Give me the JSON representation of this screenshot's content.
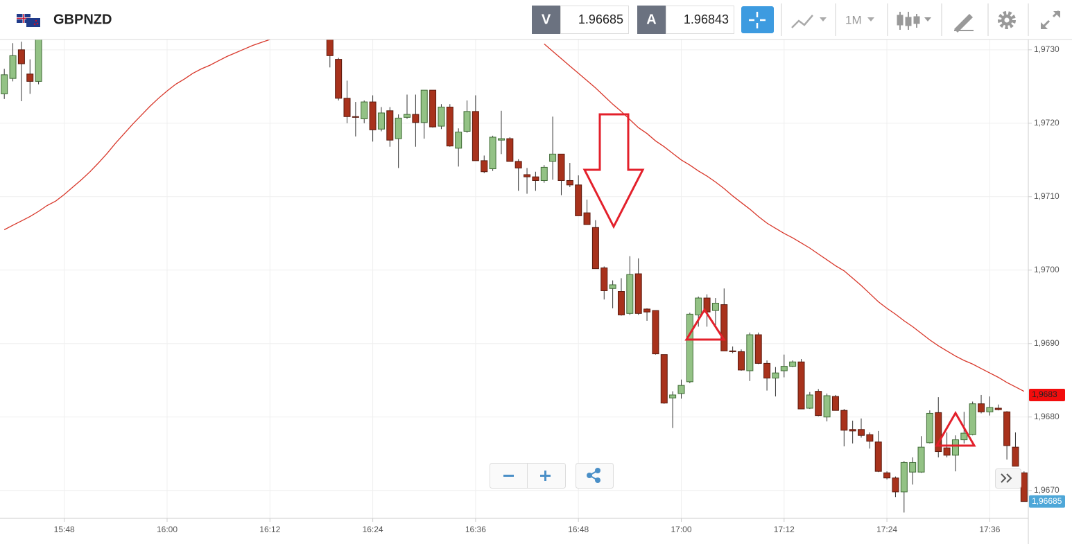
{
  "toolbar": {
    "symbol": "GBPNZD",
    "bid_label": "V",
    "bid": 1.96685,
    "ask_label": "A",
    "ask": 1.96843,
    "timeframe": "1M"
  },
  "chart_data": {
    "type": "candlestick",
    "categories": [
      null,
      null,
      null,
      null,
      null,
      null,
      null,
      "15:48",
      null,
      null,
      null,
      null,
      null,
      null,
      null,
      null,
      null,
      null,
      null,
      "16:00",
      null,
      null,
      null,
      null,
      null,
      null,
      null,
      null,
      null,
      null,
      null,
      "16:12",
      null,
      null,
      null,
      null,
      null,
      null,
      null,
      null,
      null,
      null,
      null,
      "16:24",
      null,
      null,
      null,
      null,
      null,
      null,
      null,
      null,
      null,
      null,
      null,
      "16:36",
      null,
      null,
      null,
      null,
      null,
      null,
      null,
      null,
      null,
      null,
      null,
      "16:48",
      null,
      null,
      null,
      null,
      null,
      null,
      null,
      null,
      null,
      null,
      null,
      "17:00",
      null,
      null,
      null,
      null,
      null,
      null,
      null,
      null,
      null,
      null,
      null,
      "17:12",
      null,
      null,
      null,
      null,
      null,
      null,
      null,
      null,
      null,
      null,
      null,
      "17:24",
      null,
      null,
      null,
      null,
      null,
      null,
      null,
      null,
      null,
      null,
      null,
      "17:36",
      null,
      null,
      null,
      null
    ],
    "candles": {
      "up_color": "#93c285",
      "down_color": "#a8321c",
      "open": [
        1.9724,
        1.97261,
        1.973,
        1.97267,
        1.97257,
        null,
        null,
        null,
        null,
        null,
        null,
        null,
        null,
        null,
        null,
        null,
        null,
        null,
        null,
        null,
        null,
        null,
        null,
        null,
        null,
        null,
        null,
        null,
        null,
        null,
        null,
        null,
        null,
        null,
        null,
        null,
        null,
        null,
        1.97316,
        1.97287,
        1.97234,
        1.97209,
        1.97206,
        1.97229,
        1.97192,
        1.97217,
        1.97179,
        1.97208,
        1.97212,
        1.97201,
        1.97245,
        1.97196,
        1.97222,
        1.97166,
        1.97189,
        1.97216,
        1.97149,
        1.97138,
        1.97177,
        1.97179,
        1.97148,
        1.9713,
        1.97127,
        1.97122,
        1.97148,
        1.97158,
        1.97122,
        1.97116,
        1.97078,
        1.97058,
        1.97003,
        1.96975,
        1.96971,
        1.96941,
        1.96995,
        1.96947,
        1.96945,
        1.96885,
        1.96826,
        1.96832,
        1.96848,
        1.96939,
        1.96962,
        1.96945,
        1.96953,
        1.9689,
        1.96889,
        1.96863,
        1.96912,
        1.96873,
        1.96853,
        1.96863,
        1.96869,
        1.96875,
        1.96812,
        1.96835,
        1.968,
        1.96828,
        1.96809,
        1.96783,
        1.96783,
        1.96776,
        1.96766,
        1.96724,
        1.96717,
        1.96698,
        1.96725,
        1.96725,
        1.96765,
        1.96806,
        1.96758,
        1.96748,
        1.96769,
        1.96776,
        1.96818,
        1.96807,
        1.96812,
        1.96807,
        1.96759,
        1.96724
      ],
      "high": [
        1.97274,
        1.97309,
        1.97311,
        1.97287,
        1.97318,
        null,
        null,
        null,
        null,
        null,
        null,
        null,
        null,
        null,
        null,
        null,
        null,
        null,
        null,
        null,
        null,
        null,
        null,
        null,
        null,
        null,
        null,
        null,
        null,
        null,
        null,
        null,
        null,
        null,
        null,
        null,
        null,
        null,
        1.9732,
        1.97289,
        1.97258,
        1.97229,
        1.97231,
        1.97238,
        1.97222,
        1.97222,
        1.97212,
        1.97239,
        1.97239,
        1.97245,
        1.97245,
        1.97226,
        1.97226,
        1.97193,
        1.97231,
        1.97238,
        1.97156,
        1.97183,
        1.97217,
        1.97181,
        1.97151,
        1.97139,
        1.97134,
        1.97143,
        1.97209,
        1.97158,
        1.97146,
        1.97129,
        1.97096,
        1.97068,
        1.97005,
        1.96986,
        1.96989,
        1.97019,
        1.97016,
        1.96948,
        1.96945,
        1.96885,
        1.96835,
        1.96851,
        1.96942,
        1.96964,
        1.96967,
        1.96962,
        1.96975,
        1.96896,
        1.96892,
        1.96915,
        1.96915,
        1.96877,
        1.96868,
        1.96885,
        1.96877,
        1.96879,
        1.96834,
        1.96838,
        1.96832,
        1.9683,
        1.96811,
        1.96795,
        1.96798,
        1.96779,
        1.96781,
        1.96726,
        1.96719,
        1.9674,
        1.96745,
        1.96774,
        1.96809,
        1.96827,
        1.96779,
        1.96775,
        1.96807,
        1.96821,
        1.9683,
        1.96828,
        1.96817,
        1.96808,
        1.96779,
        1.96726
      ],
      "low": [
        1.97233,
        1.97257,
        1.9723,
        1.9724,
        1.97253,
        null,
        null,
        null,
        null,
        null,
        null,
        null,
        null,
        null,
        null,
        null,
        null,
        null,
        null,
        null,
        null,
        null,
        null,
        null,
        null,
        null,
        null,
        null,
        null,
        null,
        null,
        null,
        null,
        null,
        null,
        null,
        null,
        null,
        1.97276,
        1.97231,
        1.972,
        1.97182,
        1.972,
        1.97175,
        1.97189,
        1.97168,
        1.97139,
        1.97206,
        1.97168,
        1.97179,
        1.97194,
        1.97192,
        1.97168,
        1.97141,
        1.97187,
        1.97149,
        1.97132,
        1.97135,
        1.97158,
        1.97148,
        1.97108,
        1.97104,
        1.97108,
        1.97119,
        1.97123,
        1.97102,
        1.97113,
        1.97074,
        1.97062,
        1.97002,
        1.9696,
        1.96948,
        1.96938,
        1.96939,
        1.96939,
        1.96931,
        1.96885,
        1.96818,
        1.96785,
        1.96825,
        1.96846,
        1.96923,
        1.96923,
        1.96925,
        1.9689,
        1.96887,
        1.96863,
        1.96849,
        1.96872,
        1.96836,
        1.96828,
        1.96854,
        1.96868,
        1.96811,
        1.96811,
        1.96801,
        1.96794,
        1.96809,
        1.9676,
        1.96764,
        1.96772,
        1.96757,
        1.96725,
        1.96715,
        1.96691,
        1.9667,
        1.96708,
        1.96724,
        1.96764,
        1.96745,
        1.96745,
        1.96726,
        1.96764,
        1.96775,
        1.96805,
        1.96802,
        1.96809,
        1.96742,
        1.96733,
        1.96685
      ],
      "close": [
        1.97266,
        1.97292,
        1.97281,
        1.97257,
        1.97316,
        null,
        null,
        null,
        null,
        null,
        null,
        null,
        null,
        null,
        null,
        null,
        null,
        null,
        null,
        null,
        null,
        null,
        null,
        null,
        null,
        null,
        null,
        null,
        null,
        null,
        null,
        null,
        null,
        null,
        null,
        null,
        null,
        null,
        1.97292,
        1.97234,
        1.97209,
        1.97208,
        1.97229,
        1.97191,
        1.97214,
        1.97177,
        1.97207,
        1.97212,
        1.97201,
        1.97245,
        1.97195,
        1.97222,
        1.97169,
        1.97188,
        1.97216,
        1.97149,
        1.97134,
        1.97181,
        1.97179,
        1.97148,
        1.97139,
        1.97127,
        1.97122,
        1.9714,
        1.97158,
        1.97122,
        1.97116,
        1.97074,
        1.97062,
        1.97002,
        1.96972,
        1.9698,
        1.96939,
        1.96994,
        1.96941,
        1.96943,
        1.96886,
        1.96819,
        1.9683,
        1.96843,
        1.9694,
        1.96962,
        1.96943,
        1.96955,
        1.9689,
        1.96889,
        1.96864,
        1.96912,
        1.96873,
        1.96853,
        1.9686,
        1.96869,
        1.96875,
        1.96811,
        1.9683,
        1.96802,
        1.96829,
        1.96809,
        1.96782,
        1.96781,
        1.96775,
        1.96767,
        1.96726,
        1.96717,
        1.96698,
        1.96738,
        1.96738,
        1.96759,
        1.96805,
        1.96753,
        1.96748,
        1.96769,
        1.96778,
        1.96818,
        1.96807,
        1.96813,
        1.9681,
        1.96761,
        1.96733,
        1.96685
      ]
    },
    "moving_average": {
      "color": "#d8372a",
      "values": [
        1.97055,
        1.97061,
        1.97067,
        1.97073,
        1.9708,
        1.97088,
        1.97094,
        1.97103,
        1.97113,
        1.97123,
        1.97134,
        1.97146,
        1.97159,
        1.97173,
        1.97186,
        1.97199,
        1.97211,
        1.97223,
        1.97234,
        1.97244,
        1.97253,
        1.9726,
        1.97268,
        1.97274,
        1.97279,
        1.97285,
        1.97291,
        1.97296,
        1.97301,
        1.97306,
        1.9731,
        1.97314,
        null,
        null,
        null,
        null,
        null,
        null,
        null,
        null,
        null,
        null,
        null,
        null,
        null,
        null,
        null,
        null,
        null,
        null,
        null,
        null,
        null,
        null,
        null,
        null,
        null,
        null,
        null,
        null,
        null,
        null,
        null,
        1.97308,
        1.97298,
        1.97288,
        1.97278,
        1.97268,
        1.97258,
        1.97248,
        1.97237,
        1.97226,
        1.97216,
        1.97205,
        1.97194,
        1.97186,
        1.97176,
        1.97168,
        1.97159,
        1.9715,
        1.97143,
        1.97135,
        1.97128,
        1.9712,
        1.97111,
        1.97101,
        1.97092,
        1.97083,
        1.97073,
        1.97064,
        1.97057,
        1.9705,
        1.97044,
        1.97037,
        1.9703,
        1.97022,
        1.97014,
        1.97006,
        1.96999,
        1.96989,
        1.96979,
        1.96968,
        1.96957,
        1.96948,
        1.9694,
        1.96931,
        1.96923,
        1.96914,
        1.96905,
        1.96897,
        1.9689,
        1.96883,
        1.96877,
        1.96872,
        1.96866,
        1.9686,
        1.96854,
        1.96847,
        1.96841,
        1.96835
      ]
    },
    "ma_tag": {
      "value": 1.9683,
      "label": "1,9683",
      "color": "#f20d0d"
    },
    "price_tag": {
      "value": 1.96685,
      "label": "1,96685",
      "color": "#4ea7d8"
    },
    "ylim": [
      1.96662,
      1.97314
    ],
    "yticks": [
      {
        "value": 1.967,
        "label": "1,9670"
      },
      {
        "value": 1.968,
        "label": "1,9680"
      },
      {
        "value": 1.969,
        "label": "1,9690"
      },
      {
        "value": 1.97,
        "label": "1,9700"
      },
      {
        "value": 1.971,
        "label": "1,9710"
      },
      {
        "value": 1.972,
        "label": "1,9720"
      },
      {
        "value": 1.973,
        "label": "1,9730"
      }
    ],
    "grid": true
  }
}
